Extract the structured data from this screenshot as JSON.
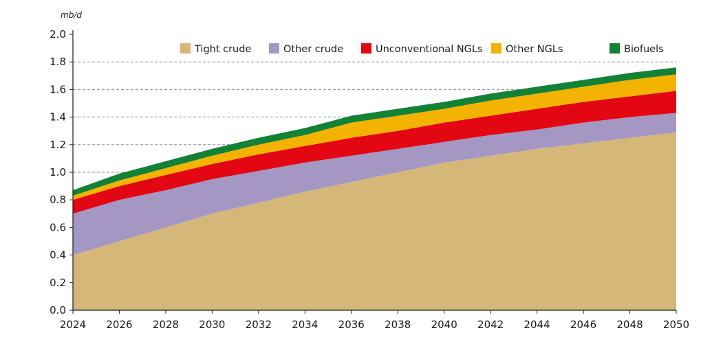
{
  "chart_data": {
    "type": "area",
    "stacked": true,
    "y_unit_label": "mb/d",
    "title": "",
    "xlabel": "",
    "ylabel": "",
    "xlim": [
      2024,
      2050
    ],
    "ylim": [
      0,
      2.0
    ],
    "x_ticks": [
      2024,
      2026,
      2028,
      2030,
      2032,
      2034,
      2036,
      2038,
      2040,
      2042,
      2044,
      2046,
      2048,
      2050
    ],
    "x_tick_labels": [
      "2024",
      "2026",
      "2028",
      "2030",
      "2032",
      "2034",
      "2036",
      "2038",
      "2040",
      "2042",
      "2044",
      "2046",
      "2048",
      "2050"
    ],
    "y_ticks": [
      0,
      0.2,
      0.4,
      0.6,
      0.8,
      1.0,
      1.2,
      1.4,
      1.6,
      1.8,
      2.0
    ],
    "y_tick_labels": [
      "0.0",
      "0.2",
      "0.4",
      "0.6",
      "0.8",
      "1.0",
      "1.2",
      "1.4",
      "1.6",
      "1.8",
      "2.0"
    ],
    "gridlines": "horizontal dashed",
    "legend_position": "top",
    "x": [
      2024,
      2026,
      2028,
      2030,
      2032,
      2034,
      2036,
      2038,
      2040,
      2042,
      2044,
      2046,
      2048,
      2050
    ],
    "series": [
      {
        "name": "Tight crude",
        "color": "#d4b779",
        "values": [
          0.4,
          0.5,
          0.6,
          0.7,
          0.78,
          0.86,
          0.93,
          1.0,
          1.07,
          1.12,
          1.17,
          1.21,
          1.25,
          1.29
        ]
      },
      {
        "name": "Other crude",
        "color": "#a497c3",
        "values": [
          0.3,
          0.3,
          0.27,
          0.25,
          0.23,
          0.21,
          0.19,
          0.17,
          0.15,
          0.15,
          0.14,
          0.15,
          0.15,
          0.14
        ]
      },
      {
        "name": "Unconventional NGLs",
        "color": "#e30613",
        "values": [
          0.1,
          0.1,
          0.11,
          0.11,
          0.12,
          0.12,
          0.13,
          0.13,
          0.14,
          0.14,
          0.15,
          0.15,
          0.15,
          0.16
        ]
      },
      {
        "name": "Other NGLs",
        "color": "#f3b300",
        "values": [
          0.03,
          0.04,
          0.05,
          0.06,
          0.07,
          0.08,
          0.11,
          0.11,
          0.1,
          0.11,
          0.11,
          0.11,
          0.12,
          0.12
        ]
      },
      {
        "name": "Biofuels",
        "color": "#138136",
        "values": [
          0.04,
          0.05,
          0.05,
          0.05,
          0.05,
          0.05,
          0.05,
          0.05,
          0.05,
          0.05,
          0.05,
          0.05,
          0.05,
          0.05
        ]
      }
    ]
  }
}
